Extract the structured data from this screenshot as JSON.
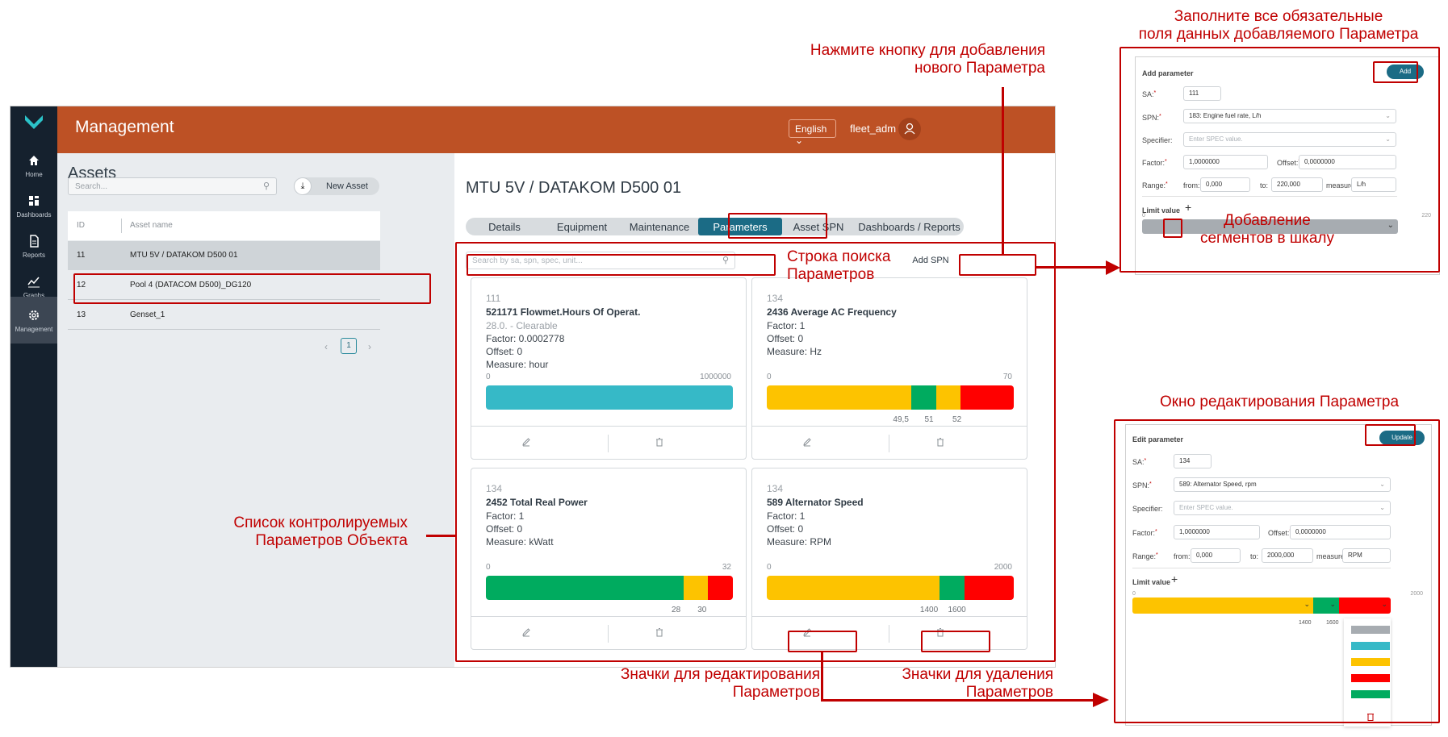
{
  "app": {
    "title": "Management",
    "language": "English",
    "user": "fleet_adm",
    "sidebar": [
      {
        "label": "Home",
        "icon": "home-icon"
      },
      {
        "label": "Dashboards",
        "icon": "dashboards-icon"
      },
      {
        "label": "Reports",
        "icon": "reports-icon"
      },
      {
        "label": "Graphs",
        "icon": "graphs-icon"
      },
      {
        "label": "Management",
        "icon": "gear-icon"
      }
    ]
  },
  "assets": {
    "title": "Assets",
    "search_placeholder": "Search...",
    "new_asset": "New Asset",
    "columns": [
      "ID",
      "Asset name"
    ],
    "rows": [
      {
        "id": "11",
        "name": "MTU 5V / DATAKOM D500 01"
      },
      {
        "id": "12",
        "name": "Pool 4 (DATACOM D500)_DG120"
      },
      {
        "id": "13",
        "name": "Genset_1"
      }
    ],
    "page": "1"
  },
  "detail": {
    "title": "MTU 5V / DATAKOM D500 01",
    "tabs": [
      "Details",
      "Equipment",
      "Maintenance",
      "Parameters",
      "Asset SPN",
      "Dashboards / Reports"
    ],
    "active_tab": "Parameters",
    "search_placeholder": "Search by sa, spn, spec, unit...",
    "add_spn": "Add SPN"
  },
  "parameters": [
    {
      "sa": "111",
      "name": "521171 Flowmet.Hours Of Operat.",
      "extra": "28.0. - Clearable",
      "factor": "Factor: 0.0002778",
      "offset": "Offset: 0",
      "measure": "Measure: hour",
      "min": "0",
      "max": "1000000",
      "segments": [
        {
          "frac": 1.0,
          "color": "#36b9c7"
        }
      ],
      "ticks": []
    },
    {
      "sa": "134",
      "name": "2436 Average AC Frequency",
      "extra": "",
      "factor": "Factor: 1",
      "offset": "Offset: 0",
      "measure": "Measure: Hz",
      "min": "0",
      "max": "70",
      "segments": [
        {
          "frac": 0.5857,
          "color": "#fdc300"
        },
        {
          "frac": 0.1,
          "color": "#00ab5f"
        },
        {
          "frac": 0.1,
          "color": "#fdc300"
        },
        {
          "frac": 0.2143,
          "color": "#ff0000"
        }
      ],
      "ticks": [
        {
          "label": "49,5",
          "at": 0.543
        },
        {
          "label": "51",
          "at": 0.657
        },
        {
          "label": "52",
          "at": 0.77
        }
      ]
    },
    {
      "sa": "134",
      "name": "2452 Total Real Power",
      "extra": "",
      "factor": "Factor: 1",
      "offset": "Offset: 0",
      "measure": "Measure: kWatt",
      "min": "0",
      "max": "32",
      "segments": [
        {
          "frac": 0.8,
          "color": "#00ab5f"
        },
        {
          "frac": 0.1,
          "color": "#fdc300"
        },
        {
          "frac": 0.1,
          "color": "#ff0000"
        }
      ],
      "ticks": [
        {
          "label": "28",
          "at": 0.77
        },
        {
          "label": "30",
          "at": 0.875
        }
      ]
    },
    {
      "sa": "134",
      "name": "589 Alternator Speed",
      "extra": "",
      "factor": "Factor: 1",
      "offset": "Offset: 0",
      "measure": "Measure: RPM",
      "min": "0",
      "max": "2000",
      "segments": [
        {
          "frac": 0.7,
          "color": "#fdc300"
        },
        {
          "frac": 0.1,
          "color": "#00ab5f"
        },
        {
          "frac": 0.2,
          "color": "#ff0000"
        }
      ],
      "ticks": [
        {
          "label": "1400",
          "at": 0.657
        },
        {
          "label": "1600",
          "at": 0.77
        }
      ]
    }
  ],
  "add_form": {
    "title": "Add parameter",
    "button": "Add",
    "sa_label": "SA:",
    "sa_value": "111",
    "spn_label": "SPN:",
    "spn_value": "183: Engine fuel rate, L/h",
    "specifier_label": "Specifier:",
    "specifier_placeholder": "Enter SPEC value.",
    "factor_label": "Factor:",
    "factor_value": "1,0000000",
    "offset_label": "Offset:",
    "offset_value": "0,0000000",
    "range_label": "Range:",
    "from_label": "from:",
    "from_value": "0,000",
    "to_label": "to:",
    "to_value": "220,000",
    "measure_label": "measure:",
    "measure_value": "L/h",
    "limit_label": "Limit value",
    "limit_min": "0",
    "limit_max": "220"
  },
  "edit_form": {
    "title": "Edit parameter",
    "button": "Update",
    "sa_label": "SA:",
    "sa_value": "134",
    "spn_label": "SPN:",
    "spn_value": "589: Alternator Speed, rpm",
    "specifier_label": "Specifier:",
    "specifier_placeholder": "Enter SPEC value.",
    "factor_label": "Factor:",
    "factor_value": "1,0000000",
    "offset_label": "Offset:",
    "offset_value": "0,0000000",
    "range_label": "Range:",
    "from_label": "from:",
    "from_value": "0,000",
    "to_label": "to:",
    "to_value": "2000,000",
    "measure_label": "measure:",
    "measure_value": "RPM",
    "limit_label": "Limit value",
    "limit_min": "0",
    "limit_max": "2000",
    "tick1": "1400",
    "tick2": "1600",
    "palette": [
      "#a7acb1",
      "#36b9c7",
      "#fdc300",
      "#ff0000",
      "#00ab5f"
    ]
  },
  "annotations": {
    "fill_fields": "Заполните все обязательные\nполя данных добавляемого Параметра",
    "add_button_hint": "Нажмите кнопку для добавления\nнового Параметра",
    "search_hint": "Строка поиска\nПараметров",
    "segments_hint": "Добавление\nсегментов в шкалу",
    "edit_window": "Окно редактирования Параметра",
    "list_hint": "Список контролируемых\nПараметров Объекта",
    "edit_icons": "Значки для редактирования\nПараметров",
    "delete_icons": "Значки для удаления\nПараметров"
  }
}
